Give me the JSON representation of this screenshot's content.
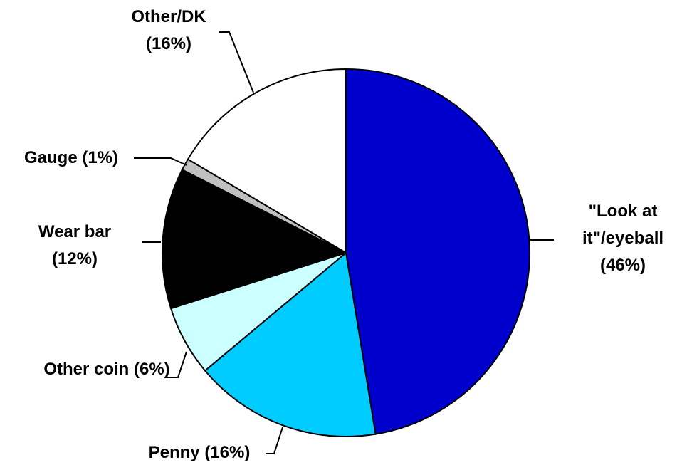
{
  "chart_data": {
    "type": "pie",
    "categories": [
      "\"Look at it\"/eyeball",
      "Penny",
      "Other coin",
      "Wear bar",
      "Gauge",
      "Other/DK"
    ],
    "values": [
      46,
      16,
      6,
      12,
      1,
      16
    ],
    "value_labels": [
      "(46%)",
      "(16%)",
      "(6%)",
      "(12%)",
      "(1%)",
      "(16%)"
    ],
    "colors": [
      "#0000cc",
      "#00ccff",
      "#ccffff",
      "#000000",
      "#c0c0c0",
      "#ffffff"
    ]
  }
}
